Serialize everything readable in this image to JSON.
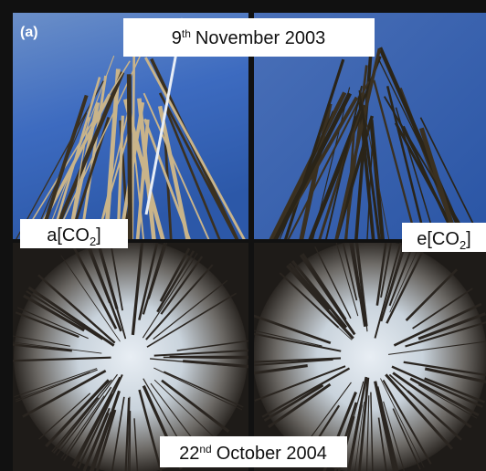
{
  "panel_label": "(a)",
  "top_caption": {
    "day": "9",
    "suffix": "th",
    "rest": "November 2003"
  },
  "left_label": {
    "prefix": "a[CO",
    "subscript": "2",
    "suffix": "]"
  },
  "right_label": {
    "prefix": "e[CO",
    "subscript": "2",
    "suffix": "]"
  },
  "bottom_caption": {
    "day": "22",
    "suffix": "nd",
    "rest": "October 2004"
  }
}
